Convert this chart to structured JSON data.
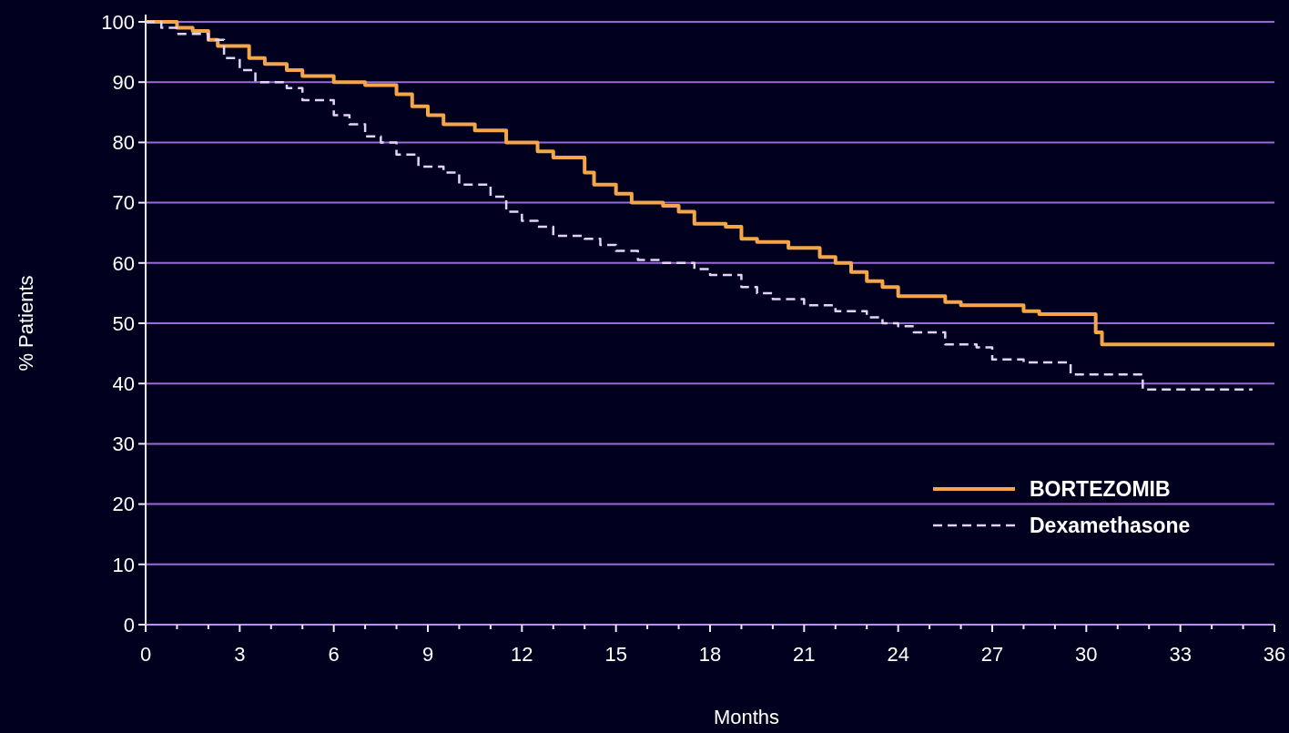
{
  "chart_data": {
    "type": "step",
    "xlabel": "Months",
    "ylabel": "% Patients",
    "xlim": [
      0,
      36
    ],
    "ylim": [
      0,
      100
    ],
    "xticks": [
      0,
      {
        "value": 1,
        "label": null
      },
      {
        "value": 2,
        "label": null
      },
      3,
      {
        "value": 4,
        "label": null
      },
      {
        "value": 5,
        "label": null
      },
      6,
      {
        "value": 7,
        "label": null
      },
      {
        "value": 8,
        "label": null
      },
      9,
      {
        "value": 10,
        "label": null
      },
      {
        "value": 11,
        "label": null
      },
      12,
      {
        "value": 13,
        "label": null
      },
      {
        "value": 14,
        "label": null
      },
      15,
      {
        "value": 16,
        "label": null
      },
      {
        "value": 17,
        "label": null
      },
      18,
      {
        "value": 19,
        "label": null
      },
      {
        "value": 20,
        "label": null
      },
      21,
      {
        "value": 22,
        "label": null
      },
      {
        "value": 23,
        "label": null
      },
      24,
      {
        "value": 25,
        "label": null
      },
      {
        "value": 26,
        "label": null
      },
      27,
      {
        "value": 28,
        "label": null
      },
      {
        "value": 29,
        "label": null
      },
      30,
      {
        "value": 31,
        "label": null
      },
      {
        "value": 32,
        "label": null
      },
      33,
      {
        "value": 34,
        "label": null
      },
      {
        "value": 35,
        "label": null
      },
      36
    ],
    "yticks": [
      0,
      10,
      20,
      30,
      40,
      50,
      60,
      70,
      80,
      90,
      100
    ],
    "grid": "y",
    "legend": "bottom right",
    "marker": "none",
    "series": [
      {
        "name": "BORTEZOMIB",
        "color": "#f5a54a",
        "line_style": "solid",
        "x": [
          0,
          1,
          1.5,
          2,
          2.3,
          3,
          3.3,
          3.8,
          4.5,
          5,
          6,
          7,
          8,
          8.5,
          9,
          9.5,
          10.5,
          11.5,
          12.5,
          13,
          14,
          14.3,
          15,
          15.5,
          16.5,
          17,
          17.5,
          18.5,
          19,
          19.5,
          20.5,
          21.5,
          22,
          22.5,
          23,
          23.5,
          24,
          25.5,
          26,
          28,
          28.5,
          30.3,
          30.5,
          36
        ],
        "values": [
          100,
          99,
          98.5,
          97,
          96,
          96,
          94,
          93,
          92,
          91,
          90,
          89.5,
          88,
          86,
          84.5,
          83,
          82,
          80,
          78.5,
          77.5,
          75,
          73,
          71.5,
          70,
          69.5,
          68.5,
          66.5,
          66,
          64,
          63.5,
          62.5,
          61,
          60,
          58.5,
          57,
          56,
          54.5,
          53.5,
          53,
          52,
          51.5,
          48.5,
          46.5,
          46.5
        ]
      },
      {
        "name": "Dexamethasone",
        "color": "#e2d4f7",
        "line_style": "dashed",
        "x": [
          0,
          0.5,
          1,
          2,
          2.5,
          3,
          3.5,
          4.5,
          5,
          6,
          6.5,
          7,
          7.5,
          8,
          8.7,
          9.5,
          10,
          11,
          11.5,
          12,
          12.5,
          13,
          14,
          14.5,
          15,
          15.7,
          16.5,
          17.5,
          18,
          19,
          19.5,
          20,
          21,
          22,
          23,
          23.5,
          24,
          24.5,
          25.5,
          26.5,
          27,
          28,
          29.5,
          31.8,
          35.3
        ],
        "values": [
          100,
          99,
          98,
          97,
          94,
          92,
          90,
          89,
          87,
          84.5,
          83,
          81,
          80,
          78,
          76,
          75,
          73,
          71,
          68.5,
          67,
          66,
          64.5,
          64,
          63,
          62,
          60.5,
          60,
          59,
          58,
          56,
          55,
          54,
          53,
          52,
          51,
          50,
          49.5,
          48.5,
          46.5,
          46,
          44,
          43.5,
          41.5,
          39,
          39
        ]
      }
    ]
  }
}
